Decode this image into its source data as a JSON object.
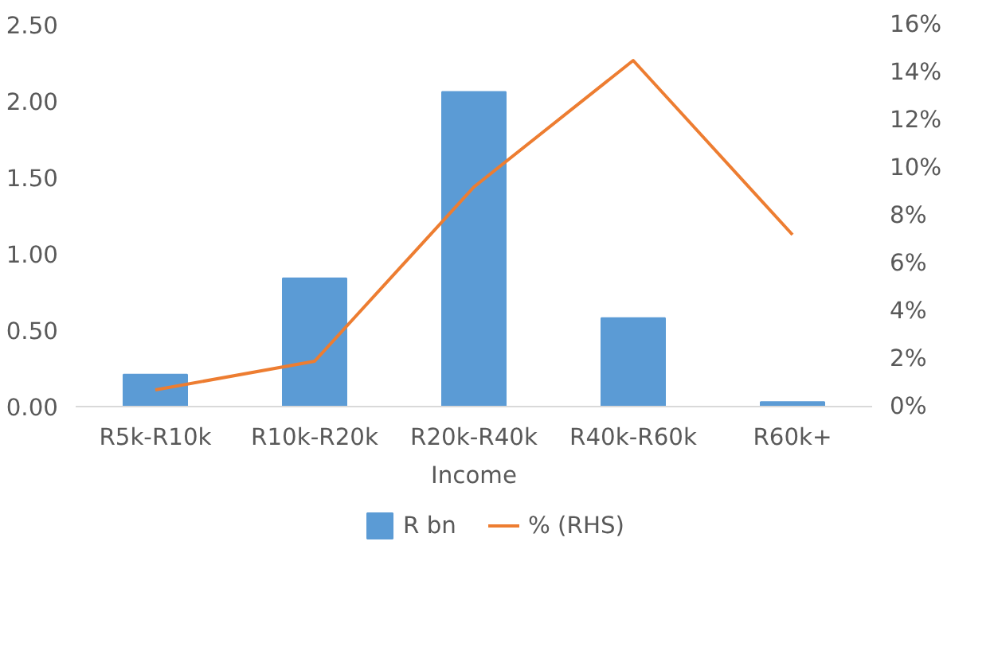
{
  "chart_data": {
    "type": "bar",
    "xlabel": "Income",
    "categories": [
      "R5k-R10k",
      "R10k-R20k",
      "R20k-R40k",
      "R40k-R60k",
      "R60k+"
    ],
    "series": [
      {
        "name": "R bn",
        "color": "#5b9bd5",
        "values": [
          0.21,
          0.84,
          2.06,
          0.58,
          0.03
        ]
      },
      {
        "name": "% (RHS)",
        "type": "line",
        "axis": "y2",
        "color": "#ed7d31",
        "values": [
          0.7,
          1.9,
          9.2,
          14.5,
          7.2
        ]
      }
    ],
    "ylim": [
      0,
      2.5
    ],
    "yticks": [
      {
        "value": 0,
        "label": "0.00"
      },
      {
        "value": 0.5,
        "label": "0.50"
      },
      {
        "value": 1,
        "label": "1.00"
      },
      {
        "value": 1.5,
        "label": "1.50"
      },
      {
        "value": 2,
        "label": "2.00"
      },
      {
        "value": 2.5,
        "label": "2.50"
      }
    ],
    "y2lim": [
      0,
      16
    ],
    "y2ticks": [
      {
        "value": 0,
        "label": "0%"
      },
      {
        "value": 2,
        "label": "2%"
      },
      {
        "value": 4,
        "label": "4%"
      },
      {
        "value": 6,
        "label": "6%"
      },
      {
        "value": 8,
        "label": "8%"
      },
      {
        "value": 10,
        "label": "10%"
      },
      {
        "value": 12,
        "label": "12%"
      },
      {
        "value": 14,
        "label": "14%"
      },
      {
        "value": 16,
        "label": "16%"
      }
    ],
    "grid": false,
    "legend": "bottom",
    "marker": "none"
  }
}
